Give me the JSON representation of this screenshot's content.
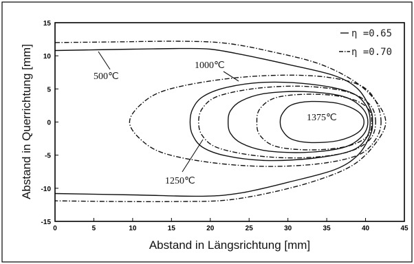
{
  "chart_data": {
    "type": "line",
    "xlabel": "Abstand in Längsrichtung [mm]",
    "ylabel": "Abstand in Querrichtung [mm]",
    "xlim": [
      0,
      45
    ],
    "ylim": [
      -15,
      15
    ],
    "x_ticks": [
      "0",
      "5",
      "10",
      "15",
      "20",
      "25",
      "30",
      "35",
      "40",
      "45"
    ],
    "y_ticks": [
      "15",
      "10",
      "5",
      "0",
      "-5",
      "-10",
      "-15"
    ],
    "legend": {
      "position": "top-right",
      "entries": [
        "η =0.65",
        "η =0.70"
      ]
    },
    "grid": false,
    "annotations": {
      "t500": "500℃",
      "t1000": "1000℃",
      "t1250": "1250℃",
      "t1375": "1375℃"
    },
    "series": [
      {
        "name": "η =0.65",
        "style": "solid",
        "isotherms": [
          {
            "label": "500℃",
            "points": [
              [
                0,
                10.8
              ],
              [
                10,
                11.0
              ],
              [
                16,
                11.1
              ],
              [
                20,
                11.0
              ],
              [
                24,
                10.2
              ],
              [
                30,
                8.7
              ],
              [
                36,
                7.0
              ],
              [
                39,
                5.0
              ],
              [
                40.6,
                2.0
              ],
              [
                40.9,
                0
              ],
              [
                40.6,
                -2.0
              ],
              [
                39,
                -5.0
              ],
              [
                36,
                -7.2
              ],
              [
                30,
                -9.1
              ],
              [
                24,
                -10.7
              ],
              [
                19,
                -11.2
              ],
              [
                10,
                -11.0
              ],
              [
                0,
                -10.8
              ]
            ]
          },
          {
            "label": "1000℃",
            "points": [
              [
                40.6,
                0
              ],
              [
                40,
                2.6
              ],
              [
                38,
                4.5
              ],
              [
                33,
                5.7
              ],
              [
                27,
                6.0
              ],
              [
                22,
                5.2
              ],
              [
                19,
                3.8
              ],
              [
                17.7,
                1.9
              ],
              [
                17.4,
                0
              ],
              [
                17.7,
                -1.9
              ],
              [
                19,
                -3.8
              ],
              [
                22,
                -5.1
              ],
              [
                27,
                -5.8
              ],
              [
                33,
                -5.5
              ],
              [
                38,
                -4.4
              ],
              [
                40,
                -2.6
              ]
            ]
          },
          {
            "label": "1250℃",
            "points": [
              [
                40.3,
                0
              ],
              [
                39.5,
                2.2
              ],
              [
                37,
                3.9
              ],
              [
                32,
                4.6
              ],
              [
                27,
                4.3
              ],
              [
                24,
                3.2
              ],
              [
                22.6,
                1.7
              ],
              [
                22.3,
                0
              ],
              [
                22.6,
                -1.7
              ],
              [
                24,
                -3.2
              ],
              [
                27,
                -4.3
              ],
              [
                32,
                -4.6
              ],
              [
                37,
                -3.9
              ],
              [
                39.5,
                -2.2
              ]
            ]
          },
          {
            "label": "1375℃",
            "points": [
              [
                39.8,
                0
              ],
              [
                39,
                1.6
              ],
              [
                36.5,
                2.8
              ],
              [
                33,
                3.1
              ],
              [
                30.5,
                2.6
              ],
              [
                29.3,
                1.3
              ],
              [
                29,
                0
              ],
              [
                29.3,
                -1.3
              ],
              [
                30.5,
                -2.6
              ],
              [
                33,
                -3.1
              ],
              [
                36.5,
                -2.8
              ],
              [
                39,
                -1.6
              ]
            ]
          }
        ]
      },
      {
        "name": "η =0.70",
        "style": "dash-dot",
        "isotherms": [
          {
            "label": "500℃",
            "points": [
              [
                0,
                12.0
              ],
              [
                8,
                12.1
              ],
              [
                16,
                12.2
              ],
              [
                22,
                11.9
              ],
              [
                28,
                10.6
              ],
              [
                34,
                8.8
              ],
              [
                38.5,
                6.2
              ],
              [
                41.3,
                3.2
              ],
              [
                42.6,
                0
              ],
              [
                41.3,
                -3.2
              ],
              [
                38.5,
                -6.4
              ],
              [
                34,
                -8.7
              ],
              [
                28,
                -10.6
              ],
              [
                22,
                -11.8
              ],
              [
                16,
                -12.0
              ],
              [
                8,
                -12.0
              ],
              [
                0,
                -11.9
              ]
            ]
          },
          {
            "label": "1000℃",
            "points": [
              [
                42.0,
                0
              ],
              [
                41.2,
                3.4
              ],
              [
                39,
                5.7
              ],
              [
                34,
                6.9
              ],
              [
                27,
                7.0
              ],
              [
                20,
                6.2
              ],
              [
                14,
                4.7
              ],
              [
                11,
                2.6
              ],
              [
                9.6,
                0
              ],
              [
                11,
                -2.6
              ],
              [
                14,
                -4.7
              ],
              [
                20,
                -6.1
              ],
              [
                27,
                -6.7
              ],
              [
                34,
                -6.3
              ],
              [
                39,
                -5.0
              ],
              [
                41.2,
                -2.8
              ]
            ]
          },
          {
            "label": "1250℃",
            "points": [
              [
                41.3,
                0
              ],
              [
                40.5,
                2.7
              ],
              [
                37.5,
                4.6
              ],
              [
                32,
                5.4
              ],
              [
                26,
                5.1
              ],
              [
                21,
                3.9
              ],
              [
                19,
                2.1
              ],
              [
                18.5,
                0
              ],
              [
                19,
                -2.1
              ],
              [
                21,
                -3.9
              ],
              [
                26,
                -5.1
              ],
              [
                32,
                -5.4
              ],
              [
                37.5,
                -4.6
              ],
              [
                40.5,
                -2.7
              ]
            ]
          },
          {
            "label": "1375℃",
            "points": [
              [
                40.8,
                0
              ],
              [
                40.2,
                2.2
              ],
              [
                37.5,
                3.7
              ],
              [
                33,
                4.2
              ],
              [
                28.5,
                3.7
              ],
              [
                26.4,
                2.0
              ],
              [
                26,
                0
              ],
              [
                26.4,
                -2.0
              ],
              [
                28.5,
                -3.7
              ],
              [
                33,
                -4.2
              ],
              [
                37.5,
                -3.7
              ],
              [
                40.2,
                -2.2
              ]
            ]
          }
        ]
      }
    ]
  }
}
